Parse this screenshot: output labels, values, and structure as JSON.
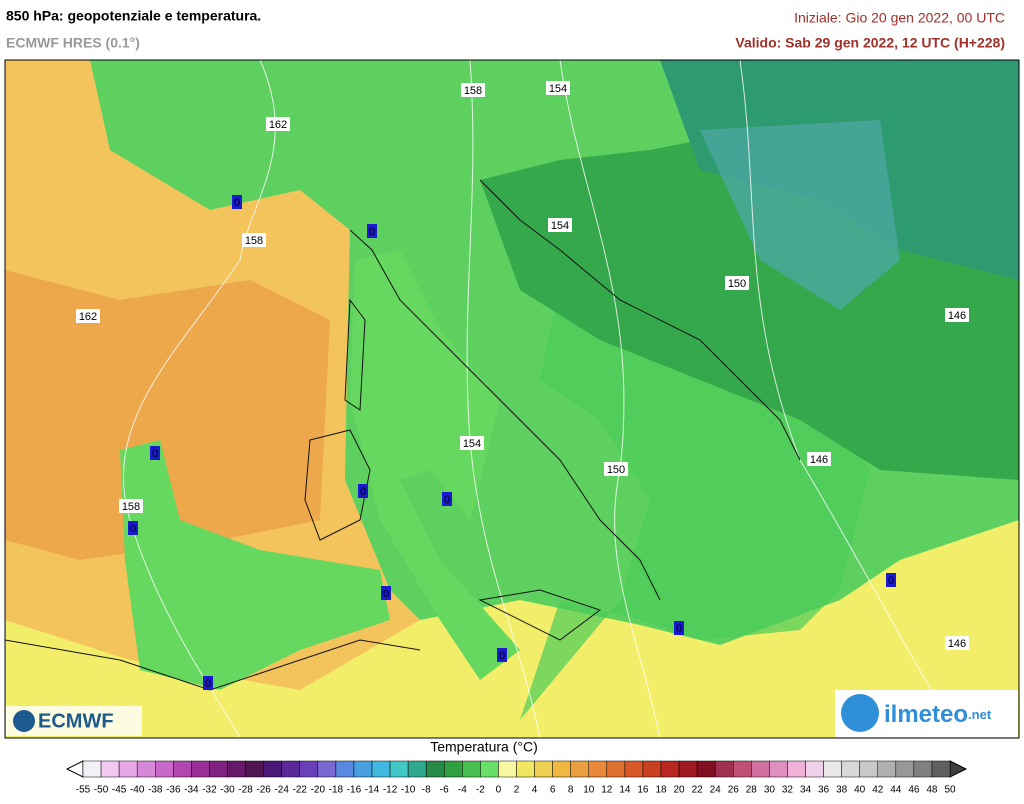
{
  "header": {
    "title": "850 hPa: geopotenziale e temperatura.",
    "subtitle": "ECMWF HRES (0.1°)",
    "init": "Iniziale: Gio 20 gen 2022, 00 UTC",
    "valid": "Valido: Sab 29 gen 2022, 12 UTC (H+228)"
  },
  "map": {
    "isohypse_labels": [
      162,
      158,
      154,
      158,
      154,
      150,
      162,
      146,
      154,
      146,
      150,
      158,
      146
    ],
    "isotherm_labels": [
      0,
      0,
      0,
      0,
      0,
      0,
      0,
      0,
      0,
      0,
      0
    ]
  },
  "logos": {
    "left": "ECMWF",
    "right": "ilmeteo",
    "right_suffix": ".net"
  },
  "colorbar": {
    "title": "Temperatura (°C)",
    "ticks": [
      -55,
      -50,
      -45,
      -40,
      -38,
      -36,
      -34,
      -32,
      -30,
      -28,
      -26,
      -24,
      -22,
      -20,
      -18,
      -16,
      -14,
      -12,
      -10,
      -8,
      -6,
      -4,
      -2,
      0,
      2,
      4,
      6,
      8,
      10,
      12,
      14,
      16,
      18,
      20,
      22,
      24,
      26,
      28,
      30,
      32,
      34,
      36,
      38,
      40,
      42,
      44,
      46,
      48,
      50
    ],
    "colors": [
      "#f4f0f8",
      "#f0c8f0",
      "#e8a8e8",
      "#d888d8",
      "#c868c8",
      "#b048b0",
      "#983098",
      "#802080",
      "#681868",
      "#501450",
      "#4a1878",
      "#5a2898",
      "#6a40b8",
      "#7868d0",
      "#5888e0",
      "#48a0e0",
      "#40b8e0",
      "#40c8c8",
      "#30a890",
      "#288a48",
      "#30a040",
      "#48c050",
      "#68e068",
      "#f8f8a0",
      "#f0e860",
      "#f0d050",
      "#f0b840",
      "#e8a040",
      "#e88838",
      "#e07030",
      "#d85828",
      "#c84020",
      "#b82820",
      "#a01820",
      "#801020",
      "#a03050",
      "#c05078",
      "#d070a0",
      "#e090c0",
      "#f0b0d8",
      "#f0d0e8",
      "#e8e8e8",
      "#d8d8d8",
      "#c8c8c8",
      "#b0b0b0",
      "#989898",
      "#808080",
      "#606060"
    ]
  }
}
